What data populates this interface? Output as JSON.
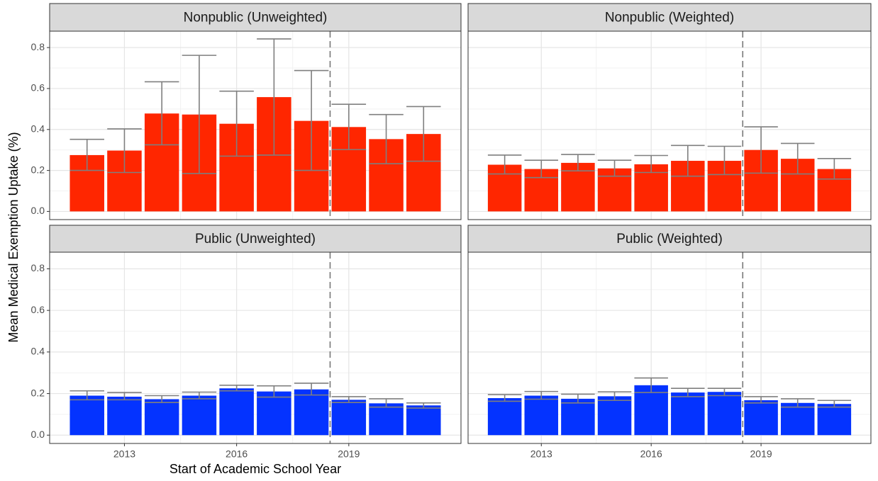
{
  "chart_data": [
    {
      "type": "bar",
      "title": "Nonpublic (Unweighted)",
      "ylabel": "Mean Medical Exemption Uptake (%)",
      "xlabel": "Start of Academic School Year",
      "x": [
        2012,
        2013,
        2014,
        2015,
        2016,
        2017,
        2018,
        2019,
        2020,
        2021
      ],
      "values": [
        0.275,
        0.297,
        0.478,
        0.473,
        0.428,
        0.558,
        0.442,
        0.412,
        0.353,
        0.378
      ],
      "error_low": [
        0.2,
        0.19,
        0.325,
        0.185,
        0.27,
        0.275,
        0.2,
        0.302,
        0.233,
        0.245
      ],
      "error_high": [
        0.352,
        0.403,
        0.633,
        0.762,
        0.587,
        0.842,
        0.688,
        0.523,
        0.473,
        0.512
      ],
      "color": "#ff2600",
      "xlim": [
        2011,
        2022
      ],
      "xticks": [
        2013,
        2016,
        2019
      ],
      "ylim": [
        -0.04,
        0.88
      ],
      "yticks": [
        0.0,
        0.2,
        0.4,
        0.6,
        0.8
      ],
      "vline": 2018.5,
      "grid": true
    },
    {
      "type": "bar",
      "title": "Nonpublic (Weighted)",
      "x": [
        2012,
        2013,
        2014,
        2015,
        2016,
        2017,
        2018,
        2019,
        2020,
        2021
      ],
      "values": [
        0.228,
        0.207,
        0.237,
        0.21,
        0.23,
        0.247,
        0.247,
        0.3,
        0.257,
        0.207
      ],
      "error_low": [
        0.183,
        0.165,
        0.198,
        0.172,
        0.19,
        0.172,
        0.18,
        0.187,
        0.183,
        0.158
      ],
      "error_high": [
        0.275,
        0.25,
        0.278,
        0.25,
        0.273,
        0.322,
        0.318,
        0.413,
        0.332,
        0.258
      ],
      "color": "#ff2600",
      "xlim": [
        2011,
        2022
      ],
      "xticks": [
        2013,
        2016,
        2019
      ],
      "ylim": [
        -0.04,
        0.88
      ],
      "yticks": [
        0.0,
        0.2,
        0.4,
        0.6,
        0.8
      ],
      "vline": 2018.5,
      "grid": true
    },
    {
      "type": "bar",
      "title": "Public (Unweighted)",
      "x": [
        2012,
        2013,
        2014,
        2015,
        2016,
        2017,
        2018,
        2019,
        2020,
        2021
      ],
      "values": [
        0.19,
        0.185,
        0.173,
        0.19,
        0.225,
        0.21,
        0.22,
        0.17,
        0.153,
        0.143
      ],
      "error_low": [
        0.17,
        0.17,
        0.157,
        0.175,
        0.213,
        0.183,
        0.193,
        0.157,
        0.135,
        0.13
      ],
      "error_high": [
        0.213,
        0.205,
        0.19,
        0.207,
        0.24,
        0.237,
        0.25,
        0.185,
        0.175,
        0.155
      ],
      "color": "#0433ff",
      "xlim": [
        2011,
        2022
      ],
      "xticks": [
        2013,
        2016,
        2019
      ],
      "ylim": [
        -0.04,
        0.88
      ],
      "yticks": [
        0.0,
        0.2,
        0.4,
        0.6,
        0.8
      ],
      "vline": 2018.5,
      "grid": true
    },
    {
      "type": "bar",
      "title": "Public (Weighted)",
      "x": [
        2012,
        2013,
        2014,
        2015,
        2016,
        2017,
        2018,
        2019,
        2020,
        2021
      ],
      "values": [
        0.178,
        0.19,
        0.175,
        0.187,
        0.24,
        0.205,
        0.208,
        0.168,
        0.155,
        0.15
      ],
      "error_low": [
        0.163,
        0.173,
        0.155,
        0.167,
        0.205,
        0.185,
        0.19,
        0.155,
        0.135,
        0.135
      ],
      "error_high": [
        0.195,
        0.21,
        0.197,
        0.208,
        0.275,
        0.225,
        0.225,
        0.185,
        0.175,
        0.167
      ],
      "color": "#0433ff",
      "xlim": [
        2011,
        2022
      ],
      "xticks": [
        2013,
        2016,
        2019
      ],
      "ylim": [
        -0.04,
        0.88
      ],
      "yticks": [
        0.0,
        0.2,
        0.4,
        0.6,
        0.8
      ],
      "vline": 2018.5,
      "grid": true
    }
  ]
}
